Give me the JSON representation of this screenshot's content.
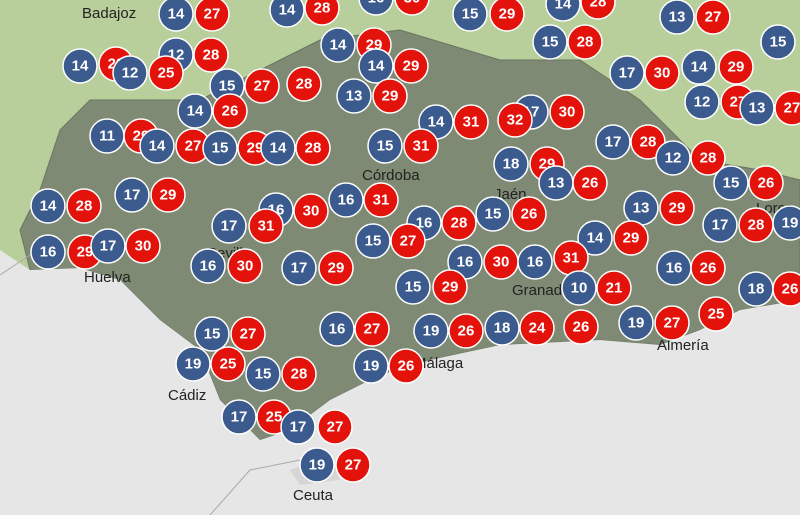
{
  "cities": [
    "Badajoz",
    "Córdoba",
    "Jaén",
    "Sevilla",
    "Huelva",
    "Granada",
    "Almería",
    "Cádiz",
    "Málaga",
    "Ceuta",
    "Lorca"
  ],
  "stations": [
    {
      "min": 14,
      "max": 27
    },
    {
      "min": 14,
      "max": 28
    },
    {
      "min": 16,
      "max": 30
    },
    {
      "min": 15,
      "max": 29
    },
    {
      "min": 14,
      "max": 28
    },
    {
      "min": 13,
      "max": 27
    },
    {
      "min": 12,
      "max": 28
    },
    {
      "min": 14,
      "max": 29
    },
    {
      "min": 15,
      "max": 28
    },
    {
      "min": 15
    },
    {
      "min": 14,
      "max": 28
    },
    {
      "min": 12,
      "max": 25
    },
    {
      "min": 15,
      "max": 27
    },
    {
      "max": 28
    },
    {
      "min": 14,
      "max": 29
    },
    {
      "min": 17,
      "max": 30
    },
    {
      "min": 14,
      "max": 29
    },
    {
      "min": 13,
      "max": 29
    },
    {
      "min": 12,
      "max": 27
    },
    {
      "min": 13,
      "max": 27
    },
    {
      "min": 14,
      "max": 26
    },
    {
      "min": 14,
      "max": 31
    },
    {
      "min": 17,
      "max": 32
    },
    {
      "max": 30
    },
    {
      "min": 11,
      "max": 29
    },
    {
      "min": 14,
      "max": 27
    },
    {
      "min": 15,
      "max": 29
    },
    {
      "min": 14,
      "max": 28
    },
    {
      "min": 15,
      "max": 31
    },
    {
      "min": 17,
      "max": 28
    },
    {
      "min": 12,
      "max": 28
    },
    {
      "min": 18,
      "max": 29
    },
    {
      "min": 13,
      "max": 26
    },
    {
      "min": 15,
      "max": 26
    },
    {
      "min": 14,
      "max": 28
    },
    {
      "min": 17,
      "max": 29
    },
    {
      "min": 16,
      "max": 30
    },
    {
      "min": 16,
      "max": 31
    },
    {
      "min": 17,
      "max": 31
    },
    {
      "min": 16,
      "max": 28
    },
    {
      "min": 15,
      "max": 26
    },
    {
      "min": 13,
      "max": 29
    },
    {
      "min": 17,
      "max": 28
    },
    {
      "min": 19
    },
    {
      "min": 14,
      "max": 29
    },
    {
      "min": 15,
      "max": 27
    },
    {
      "min": 16,
      "max": 29
    },
    {
      "min": 17,
      "max": 30
    },
    {
      "min": 16,
      "max": 30
    },
    {
      "min": 17,
      "max": 29
    },
    {
      "min": 16,
      "max": 30
    },
    {
      "min": 16,
      "max": 31
    },
    {
      "min": 16,
      "max": 26
    },
    {
      "min": 15,
      "max": 29
    },
    {
      "min": 10,
      "max": 21
    },
    {
      "min": 18,
      "max": 26
    },
    {
      "min": 15,
      "max": 27
    },
    {
      "min": 16,
      "max": 27
    },
    {
      "min": 19,
      "max": 26
    },
    {
      "min": 18,
      "max": 24
    },
    {
      "max": 26
    },
    {
      "min": 19,
      "max": 27
    },
    {
      "max": 25
    },
    {
      "min": 19,
      "max": 25
    },
    {
      "min": 15,
      "max": 28
    },
    {
      "min": 19,
      "max": 26
    },
    {
      "min": 17,
      "max": 25
    },
    {
      "min": 17,
      "max": 27
    },
    {
      "min": 19,
      "max": 27
    }
  ]
}
